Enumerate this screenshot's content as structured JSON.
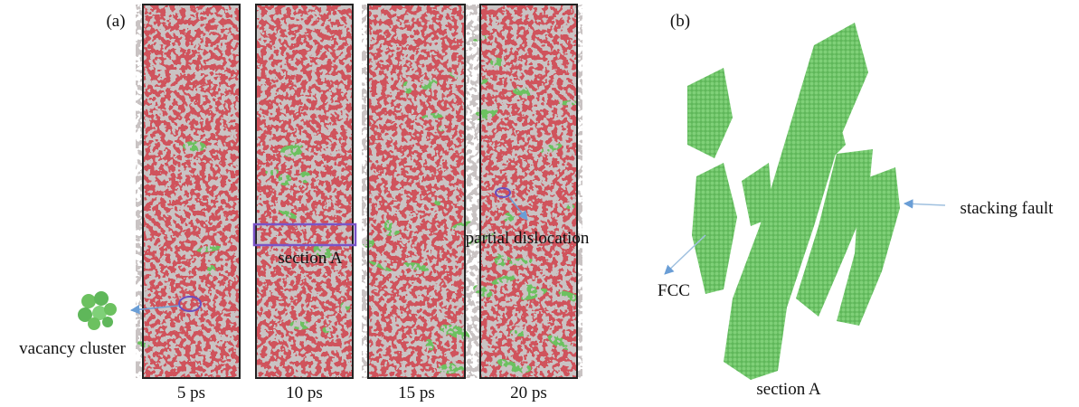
{
  "panel_a": {
    "label": "(a)",
    "frames": [
      "5 ps",
      "10 ps",
      "15 ps",
      "20 ps"
    ],
    "annotations": {
      "vacancy_cluster": "vacancy cluster",
      "section": "section A",
      "partial_dislocation": "partial dislocation"
    }
  },
  "panel_b": {
    "label": "(b)",
    "annotations": {
      "stacking_fault": "stacking fault",
      "fcc": "FCC",
      "section": "section A"
    }
  }
}
